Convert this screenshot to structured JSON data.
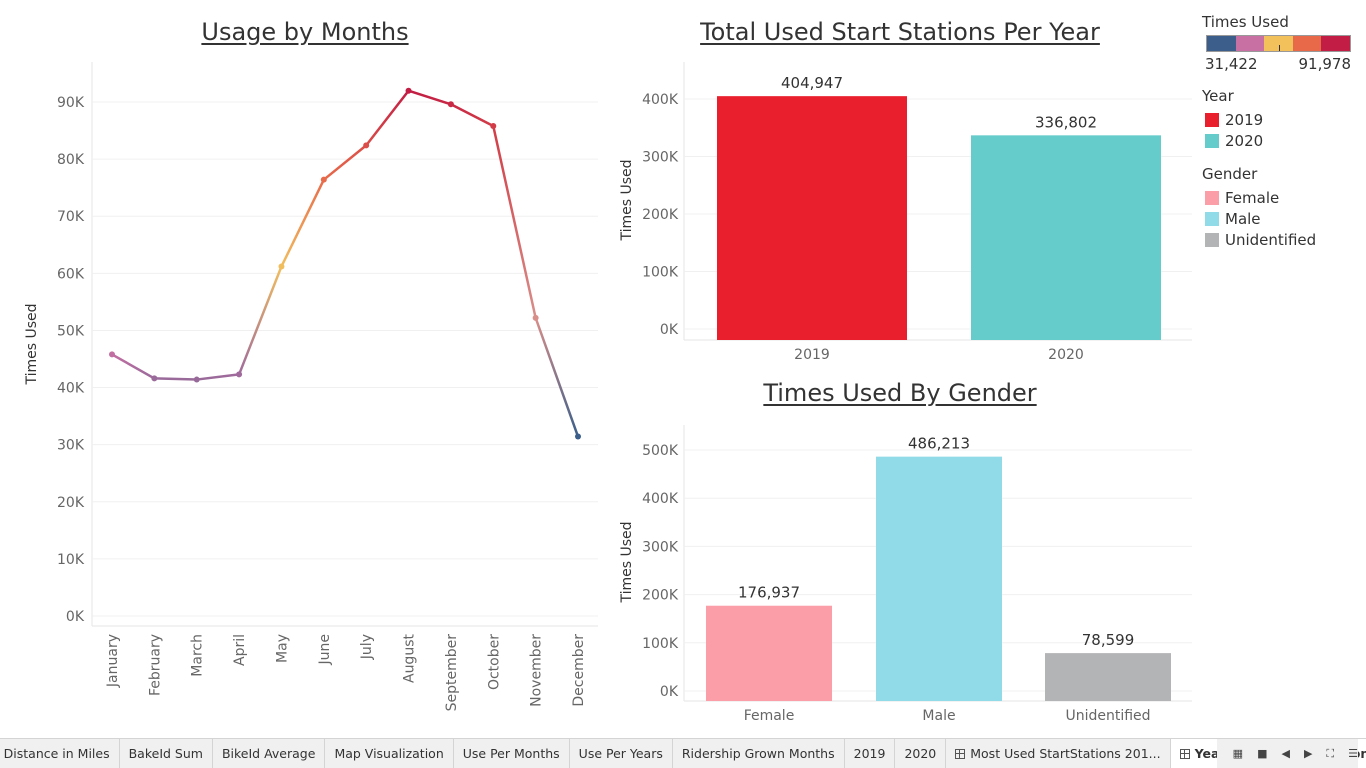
{
  "titles": {
    "line": "Usage by Months",
    "year": "Total Used Start Stations Per Year",
    "gender": "Times Used By Gender"
  },
  "legend": {
    "times_used": {
      "title": "Times Used",
      "min": "31,422",
      "max": "91,978",
      "colors": [
        "#3b5f8a",
        "#c86fa3",
        "#f2c15c",
        "#e8694a",
        "#c21d44"
      ]
    },
    "year": {
      "title": "Year",
      "items": [
        {
          "label": "2019",
          "color": "#ea1f2e"
        },
        {
          "label": "2020",
          "color": "#65cccb"
        }
      ]
    },
    "gender": {
      "title": "Gender",
      "items": [
        {
          "label": "Female",
          "color": "#fc9ea8"
        },
        {
          "label": "Male",
          "color": "#91dbe8"
        },
        {
          "label": "Unidentified",
          "color": "#b3b4b6"
        }
      ]
    }
  },
  "tabs": [
    {
      "label": "e Distance in Miles",
      "icon": null
    },
    {
      "label": "BakeId Sum",
      "icon": null
    },
    {
      "label": "BikeId Average",
      "icon": null
    },
    {
      "label": "Map Visualization",
      "icon": null
    },
    {
      "label": "Use Per Months",
      "icon": null
    },
    {
      "label": "Use Per Years",
      "icon": null
    },
    {
      "label": "Ridership Grown Months",
      "icon": null
    },
    {
      "label": "2019",
      "icon": null
    },
    {
      "label": "2020",
      "icon": null
    },
    {
      "label": "Most Used StartStations 201...",
      "icon": "dashboard-icon"
    },
    {
      "label": "Year/Gender Comparison",
      "icon": "dashboard-icon",
      "active": true
    }
  ],
  "chart_data": [
    {
      "type": "line",
      "title": "Usage by Months",
      "xlabel": "",
      "ylabel": "Times Used",
      "categories": [
        "January",
        "February",
        "March",
        "April",
        "May",
        "June",
        "July",
        "August",
        "September",
        "October",
        "November",
        "December"
      ],
      "values": [
        45800,
        41600,
        41400,
        42300,
        61200,
        76400,
        82400,
        91978,
        89600,
        85800,
        52200,
        31422
      ],
      "ylim": [
        0,
        95000
      ],
      "yticks": [
        0,
        10000,
        20000,
        30000,
        40000,
        50000,
        60000,
        70000,
        80000,
        90000
      ],
      "ytick_labels": [
        "0K",
        "10K",
        "20K",
        "30K",
        "40K",
        "50K",
        "60K",
        "70K",
        "80K",
        "90K"
      ],
      "color_scale": {
        "min": 31422,
        "max": 91978,
        "colors": [
          "#3b5f8a",
          "#c86fa3",
          "#f2c15c",
          "#e8694a",
          "#c21d44"
        ]
      },
      "grid": true
    },
    {
      "type": "bar",
      "title": "Total Used Start Stations Per Year",
      "xlabel": "",
      "ylabel": "Times Used",
      "categories": [
        "2019",
        "2020"
      ],
      "values": [
        404947,
        336802
      ],
      "value_labels": [
        "404,947",
        "336,802"
      ],
      "colors": [
        "#ea1f2e",
        "#65cccb"
      ],
      "ylim": [
        0,
        445000
      ],
      "yticks": [
        0,
        100000,
        200000,
        300000,
        400000
      ],
      "ytick_labels": [
        "0K",
        "100K",
        "200K",
        "300K",
        "400K"
      ],
      "grid": true
    },
    {
      "type": "bar",
      "title": "Times Used By Gender",
      "xlabel": "",
      "ylabel": "Times Used",
      "categories": [
        "Female",
        "Male",
        "Unidentified"
      ],
      "values": [
        176937,
        486213,
        78599
      ],
      "value_labels": [
        "176,937",
        "486,213",
        "78,599"
      ],
      "colors": [
        "#fc9ea8",
        "#91dbe8",
        "#b3b4b6"
      ],
      "ylim": [
        0,
        530000
      ],
      "yticks": [
        0,
        100000,
        200000,
        300000,
        400000,
        500000
      ],
      "ytick_labels": [
        "0K",
        "100K",
        "200K",
        "300K",
        "400K",
        "500K"
      ],
      "grid": true
    }
  ]
}
